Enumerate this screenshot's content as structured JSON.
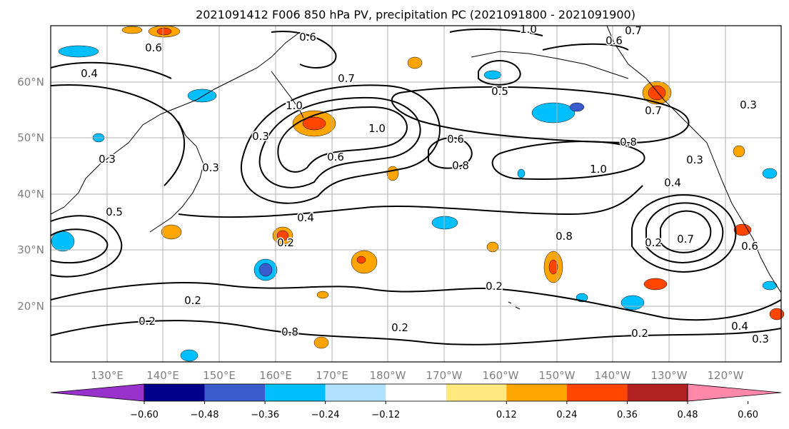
{
  "title": "2021091412 F006 850 hPa PV, precipitation PC (2021091800 - 2021091900)",
  "lat_ticks": [
    "60°N",
    "50°N",
    "40°N",
    "30°N",
    "20°N"
  ],
  "lon_ticks": [
    "130°E",
    "140°E",
    "150°E",
    "160°E",
    "170°E",
    "180°W",
    "170°W",
    "160°W",
    "150°W",
    "140°W",
    "130°W",
    "120°W"
  ],
  "colorbar": {
    "colors": [
      "#9932CC",
      "#00008B",
      "#3A5BCC",
      "#00BFFF",
      "#B0E2FF",
      "#FFFFFF",
      "#FFE97F",
      "#FFA500",
      "#FF4500",
      "#B22222",
      "#FF88AA"
    ],
    "tick_labels": [
      "−0.60",
      "−0.48",
      "−0.36",
      "−0.24",
      "−0.12",
      "0.12",
      "0.24",
      "0.36",
      "0.48",
      "0.60"
    ]
  },
  "contour_labels": [
    "0.6",
    "0.4",
    "0.3",
    "0.7",
    "0.5",
    "1.0",
    "1.0",
    "0.6",
    "0.8",
    "0.8",
    "0.6",
    "0.7",
    "0.6",
    "0.3",
    "0.4",
    "0.5",
    "0.3",
    "0.3",
    "0.4",
    "0.2",
    "0.2",
    "0.2",
    "0.2",
    "0.8",
    "1.0",
    "0.7",
    "0.3",
    "0.2",
    "0.2",
    "0.2",
    "0.4",
    "0.3",
    "0.8",
    "0.6",
    "0.7",
    "0.6",
    "1.0"
  ]
}
